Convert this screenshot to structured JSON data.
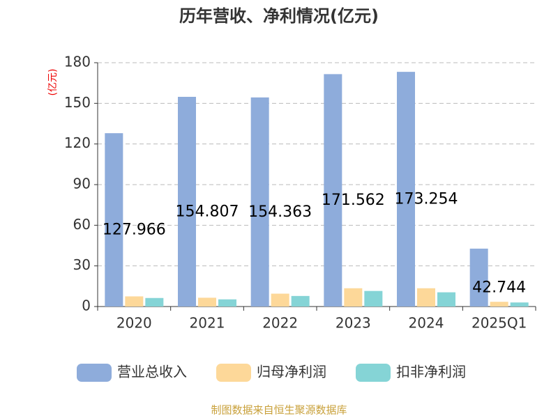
{
  "chart_data": {
    "type": "bar",
    "title": "历年营收、净利情况(亿元)",
    "y_label": "(亿元)",
    "categories": [
      "2020",
      "2021",
      "2022",
      "2023",
      "2024",
      "2025Q1"
    ],
    "series": [
      {
        "name": "营业总收入",
        "color": "#8eacdb",
        "values": [
          127.966,
          154.807,
          154.363,
          171.562,
          173.254,
          42.744
        ]
      },
      {
        "name": "归母净利润",
        "color": "#fdd899",
        "values": [
          7.5,
          6.5,
          9.5,
          13.5,
          13.5,
          3.5
        ]
      },
      {
        "name": "扣非净利润",
        "color": "#85d4d6",
        "values": [
          6.3,
          5.3,
          7.8,
          11.5,
          10.5,
          3.0
        ]
      }
    ],
    "ylim": [
      0,
      180
    ],
    "yticks": [
      0,
      30,
      60,
      90,
      120,
      150,
      180
    ],
    "grid": true,
    "source": "制图数据来自恒生聚源数据库"
  }
}
